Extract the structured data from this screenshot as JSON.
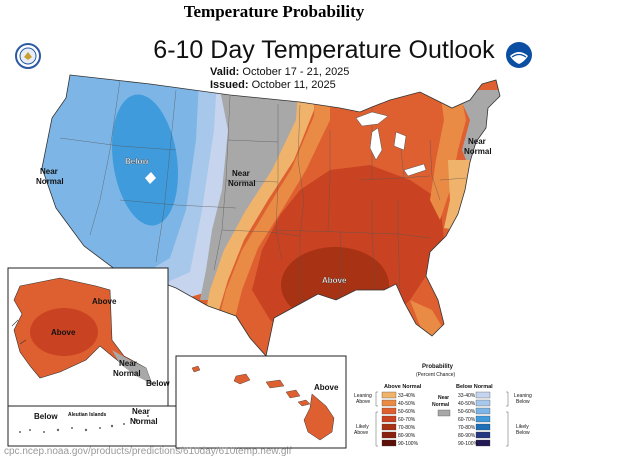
{
  "page_title": "Temperature Probability",
  "map": {
    "title": "6-10 Day Temperature Outlook",
    "valid_label": "Valid:",
    "valid_value": "October 17 - 21, 2025",
    "issued_label": "Issued:",
    "issued_value": "October 11, 2025",
    "logos": {
      "left": "doc-seal-icon",
      "right": "noaa-logo-icon"
    }
  },
  "labels": {
    "below_west": "Below",
    "near_normal_west": [
      "Near",
      "Normal"
    ],
    "near_normal_plains": [
      "Near",
      "Normal"
    ],
    "near_normal_ne": [
      "Near",
      "Normal"
    ],
    "above_south": "Above",
    "alaska_above_1": "Above",
    "alaska_above_2": "Above",
    "alaska_near_normal": [
      "Near",
      "Normal"
    ],
    "alaska_below": "Below",
    "aleutian_below": "Below",
    "aleutian_islands": "Aleutian Islands",
    "aleutian_near_normal": [
      "Near",
      "Normal"
    ],
    "hawaii_above": "Above"
  },
  "legend": {
    "title": [
      "Probability",
      "(Percent Chance)"
    ],
    "above_header": "Above Normal",
    "below_header": "Below Normal",
    "near_header": [
      "Near",
      "Normal"
    ],
    "leaning_above": [
      "Leaning",
      "Above"
    ],
    "likely_above": [
      "Likely",
      "Above"
    ],
    "leaning_below": [
      "Leaning",
      "Below"
    ],
    "likely_below": [
      "Likely",
      "Below"
    ],
    "above_bins": [
      {
        "range": "33-40%",
        "color": "#f0b36b"
      },
      {
        "range": "40-50%",
        "color": "#e98b45"
      },
      {
        "range": "50-60%",
        "color": "#de6030"
      },
      {
        "range": "60-70%",
        "color": "#c94322"
      },
      {
        "range": "70-80%",
        "color": "#a83214"
      },
      {
        "range": "80-90%",
        "color": "#8a2010"
      },
      {
        "range": "90-100%",
        "color": "#5c1008"
      }
    ],
    "below_bins": [
      {
        "range": "33-40%",
        "color": "#c6d4ee"
      },
      {
        "range": "40-50%",
        "color": "#a7c8ea"
      },
      {
        "range": "50-60%",
        "color": "#7db6e6"
      },
      {
        "range": "60-70%",
        "color": "#3f9bdc"
      },
      {
        "range": "70-80%",
        "color": "#1d6fb8"
      },
      {
        "range": "80-90%",
        "color": "#24377f"
      },
      {
        "range": "90-100%",
        "color": "#231a55"
      }
    ],
    "near_color": "#a8a8a8"
  },
  "colors": {
    "below_33_40": "#c6d4ee",
    "below_40_50": "#a7c8ea",
    "below_50_60": "#7db6e6",
    "below_60_70": "#3f9bdc",
    "near": "#a8a8a8",
    "above_33_40": "#f0b36b",
    "above_40_50": "#e98b45",
    "above_50_60": "#de6030",
    "above_60_70": "#c94322",
    "above_70_80": "#a83214"
  },
  "footer_url": "cpc.ncep.noaa.gov/products/predictions/610day/610temp.new.gif"
}
